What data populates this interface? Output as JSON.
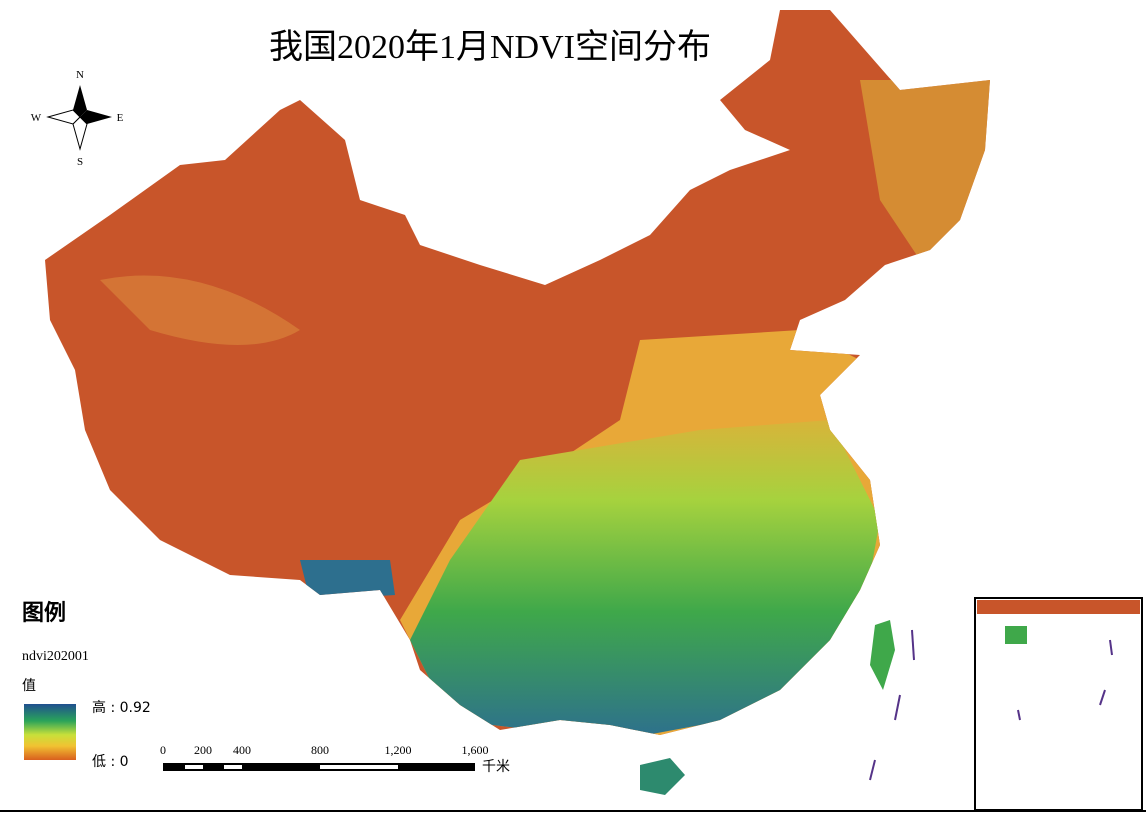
{
  "title": "我国2020年1月NDVI空间分布",
  "compass": {
    "north": "N",
    "south": "S",
    "west": "W",
    "east": "E"
  },
  "legend": {
    "heading": "图例",
    "layer": "ndvi202001",
    "field": "值",
    "high": "高 : 0.92",
    "low": "低 : 0"
  },
  "scale_bar": {
    "ticks": [
      "0",
      "200",
      "400",
      "800",
      "1,200",
      "1,600"
    ],
    "unit": "千米"
  }
}
